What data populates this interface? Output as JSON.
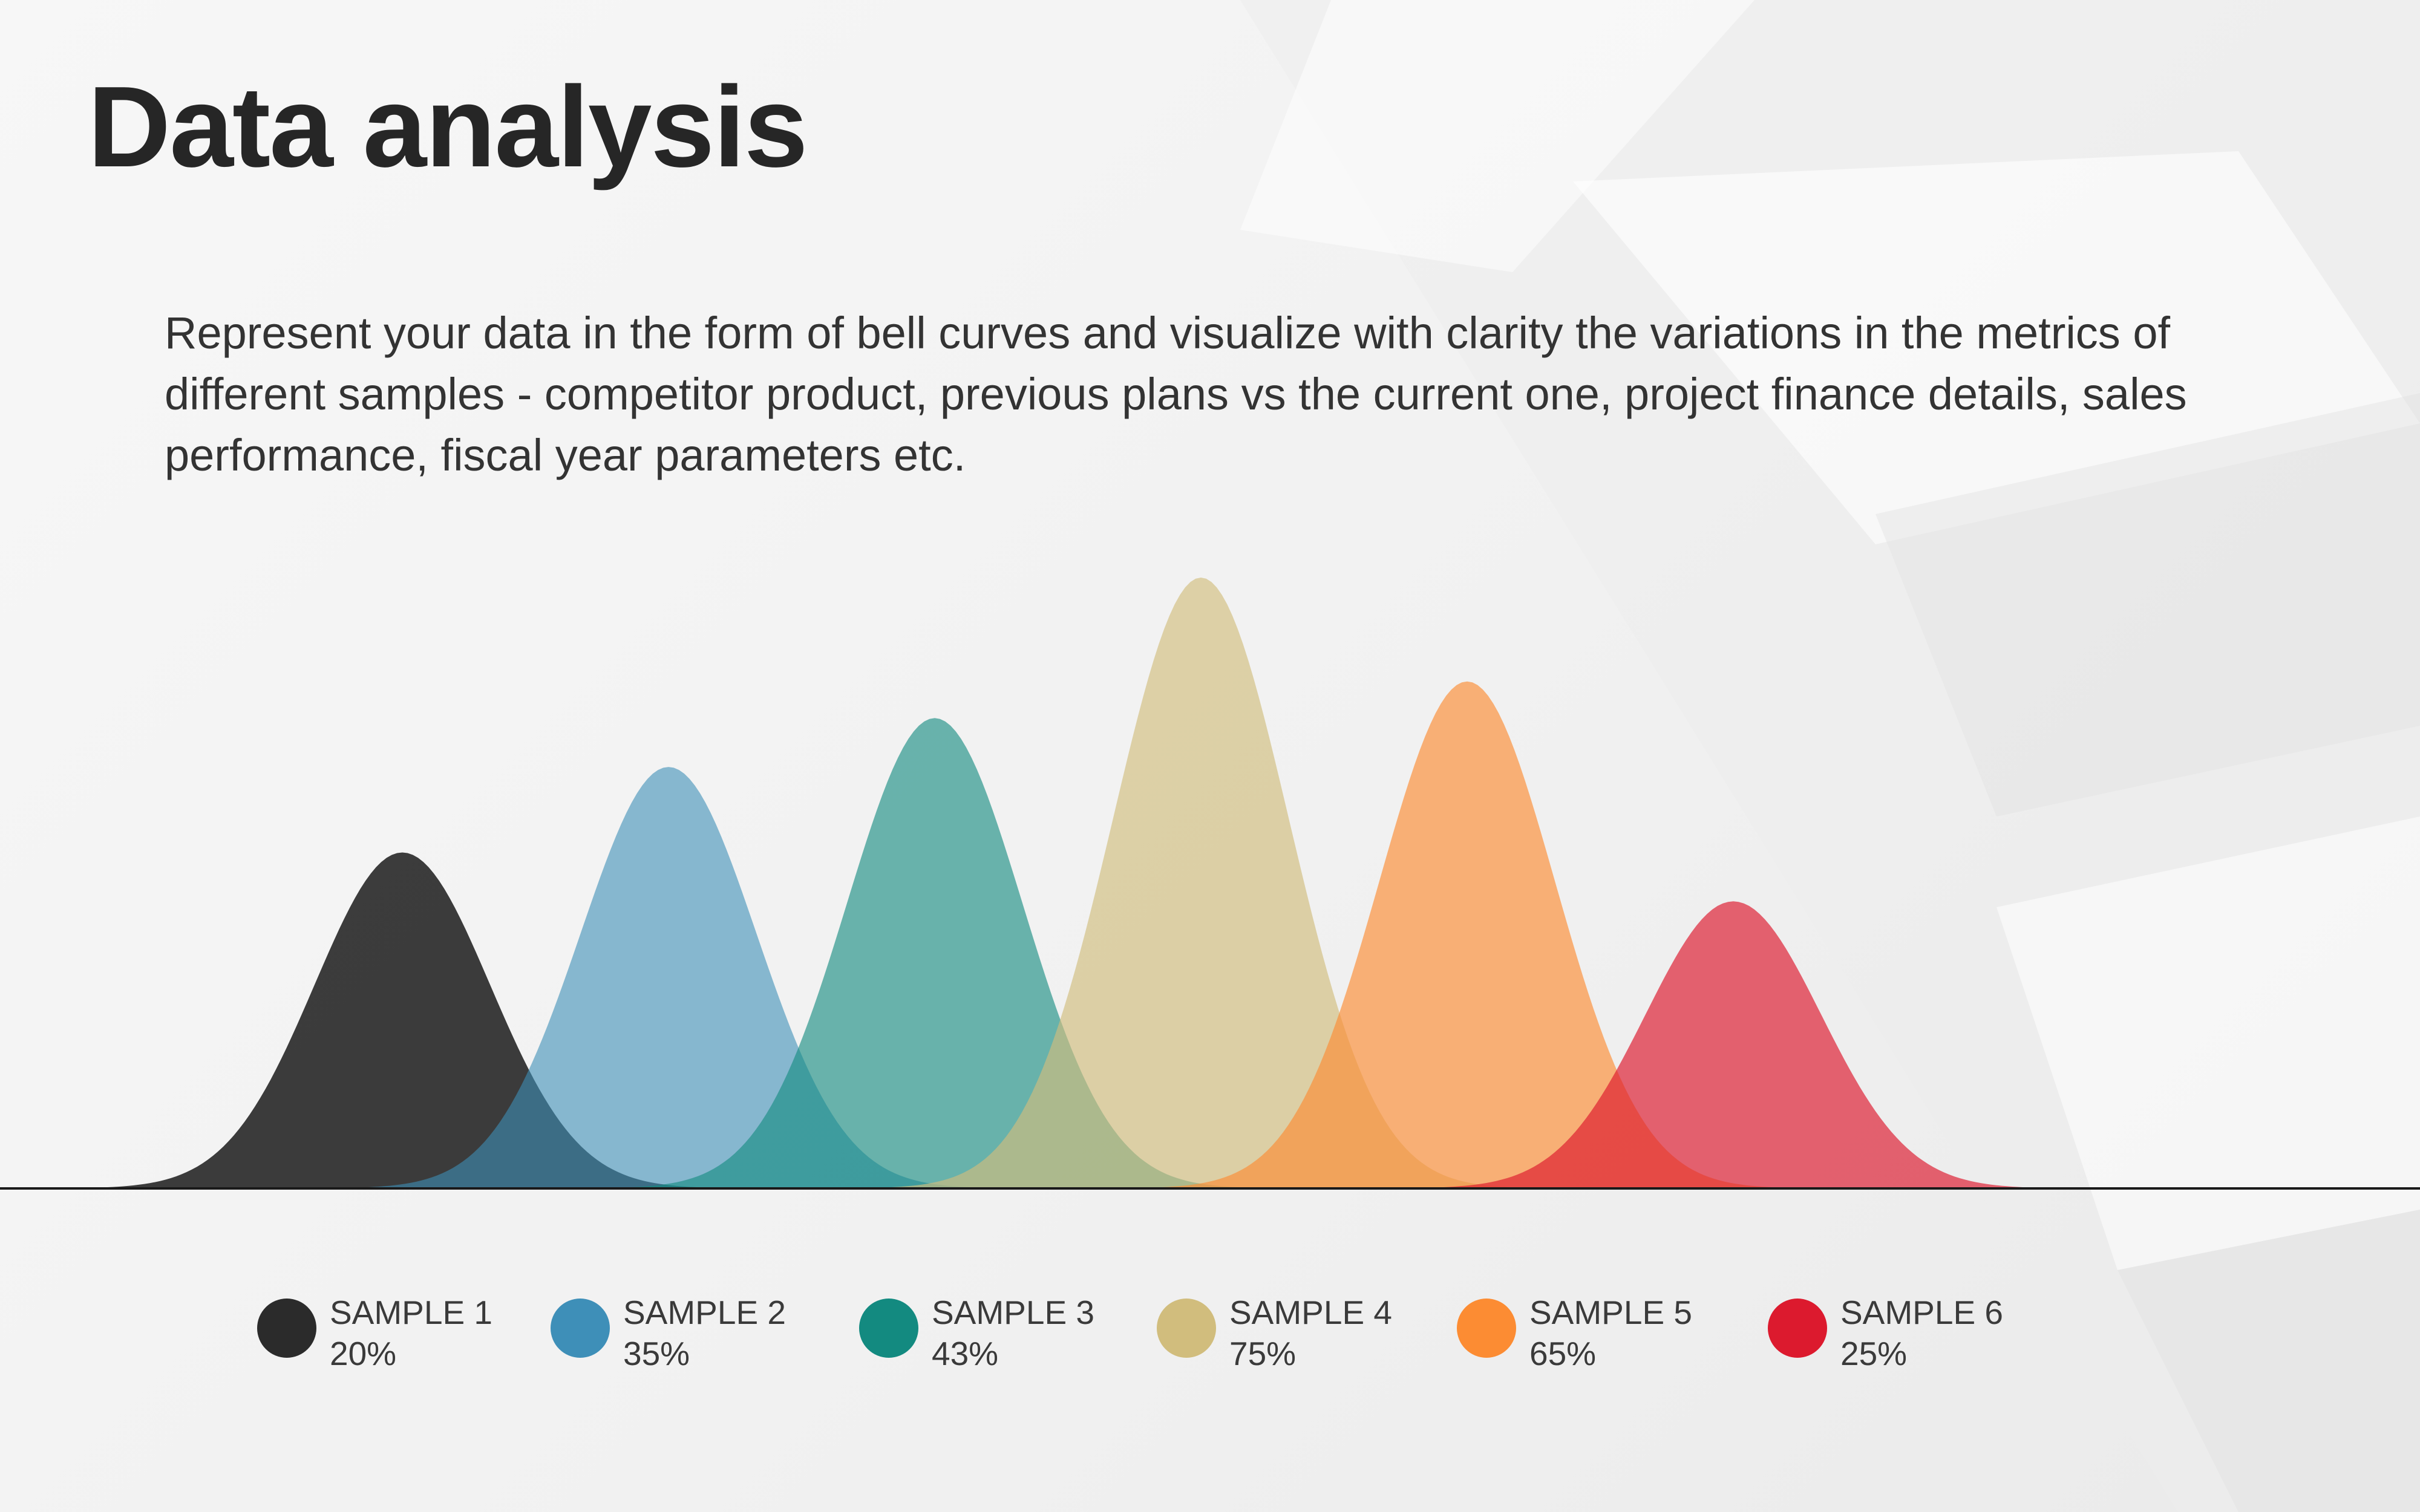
{
  "slide": {
    "title": "Data analysis",
    "description": "Represent your data in the form of bell curves and visualize with clarity the variations  in  the metrics of different samples - competitor product, previous plans vs the current one, project finance details, sales performance, fiscal year parameters etc."
  },
  "chart_data": {
    "type": "area",
    "title": "",
    "xlabel": "",
    "ylabel": "",
    "grid": false,
    "legend_position": "bottom",
    "ylim": [
      0,
      100
    ],
    "series": [
      {
        "name": "SAMPLE 1",
        "label": "20%",
        "peak_value": 55,
        "center": 1,
        "color": "#2b2b2b",
        "opacity": 0.92
      },
      {
        "name": "SAMPLE 2",
        "label": "35%",
        "peak_value": 69,
        "center": 2,
        "color": "#3e8fb8",
        "opacity": 0.6
      },
      {
        "name": "SAMPLE 3",
        "label": "43%",
        "peak_value": 77,
        "center": 3,
        "color": "#138a80",
        "opacity": 0.62
      },
      {
        "name": "SAMPLE 4",
        "label": "75%",
        "peak_value": 100,
        "center": 4,
        "color": "#d1bd7d",
        "opacity": 0.65
      },
      {
        "name": "SAMPLE 5",
        "label": "65%",
        "peak_value": 83,
        "center": 5,
        "color": "#fc8c33",
        "opacity": 0.65
      },
      {
        "name": "SAMPLE 6",
        "label": "25%",
        "peak_value": 47,
        "center": 6,
        "color": "#dc1a2e",
        "opacity": 0.67
      }
    ]
  }
}
